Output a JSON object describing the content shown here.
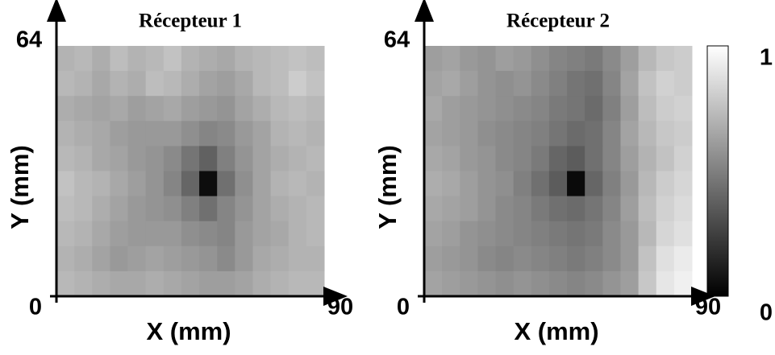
{
  "chart_data": [
    {
      "type": "heatmap",
      "title": "Récepteur 1",
      "xlabel": "X (mm)",
      "ylabel": "Y (mm)",
      "xlim": [
        0,
        90
      ],
      "ylim": [
        0,
        64
      ],
      "xticks": [
        0,
        90
      ],
      "yticks": [
        64
      ],
      "zlim": [
        0,
        1
      ],
      "z": [
        [
          0.7,
          0.72,
          0.68,
          0.74,
          0.7,
          0.72,
          0.76,
          0.7,
          0.68,
          0.66,
          0.7,
          0.72,
          0.74,
          0.76,
          0.74
        ],
        [
          0.72,
          0.7,
          0.66,
          0.7,
          0.68,
          0.74,
          0.72,
          0.68,
          0.64,
          0.62,
          0.66,
          0.72,
          0.74,
          0.8,
          0.76
        ],
        [
          0.68,
          0.66,
          0.64,
          0.66,
          0.62,
          0.64,
          0.66,
          0.62,
          0.6,
          0.58,
          0.64,
          0.68,
          0.72,
          0.74,
          0.72
        ],
        [
          0.7,
          0.68,
          0.66,
          0.62,
          0.6,
          0.6,
          0.6,
          0.56,
          0.52,
          0.54,
          0.6,
          0.64,
          0.7,
          0.72,
          0.7
        ],
        [
          0.72,
          0.7,
          0.66,
          0.64,
          0.6,
          0.58,
          0.54,
          0.46,
          0.38,
          0.5,
          0.58,
          0.64,
          0.68,
          0.7,
          0.72
        ],
        [
          0.76,
          0.72,
          0.7,
          0.66,
          0.62,
          0.58,
          0.52,
          0.4,
          0.05,
          0.44,
          0.56,
          0.64,
          0.7,
          0.72,
          0.7
        ],
        [
          0.74,
          0.72,
          0.68,
          0.64,
          0.6,
          0.58,
          0.56,
          0.5,
          0.44,
          0.52,
          0.58,
          0.64,
          0.68,
          0.7,
          0.72
        ],
        [
          0.72,
          0.7,
          0.66,
          0.62,
          0.6,
          0.6,
          0.6,
          0.56,
          0.54,
          0.52,
          0.6,
          0.64,
          0.66,
          0.7,
          0.72
        ],
        [
          0.7,
          0.68,
          0.64,
          0.6,
          0.62,
          0.64,
          0.62,
          0.6,
          0.58,
          0.54,
          0.6,
          0.66,
          0.68,
          0.7,
          0.7
        ],
        [
          0.72,
          0.7,
          0.68,
          0.66,
          0.66,
          0.68,
          0.66,
          0.64,
          0.62,
          0.62,
          0.64,
          0.68,
          0.7,
          0.72,
          0.72
        ]
      ]
    },
    {
      "type": "heatmap",
      "title": "Récepteur 2",
      "xlabel": "X (mm)",
      "ylabel": "Y (mm)",
      "xlim": [
        0,
        90
      ],
      "ylim": [
        0,
        64
      ],
      "xticks": [
        0,
        90
      ],
      "yticks": [
        64
      ],
      "zlim": [
        0,
        1
      ],
      "z": [
        [
          0.62,
          0.64,
          0.6,
          0.58,
          0.62,
          0.6,
          0.56,
          0.52,
          0.5,
          0.48,
          0.54,
          0.62,
          0.72,
          0.78,
          0.8
        ],
        [
          0.64,
          0.66,
          0.62,
          0.58,
          0.56,
          0.58,
          0.54,
          0.5,
          0.46,
          0.44,
          0.52,
          0.64,
          0.76,
          0.82,
          0.8
        ],
        [
          0.66,
          0.62,
          0.6,
          0.58,
          0.56,
          0.54,
          0.52,
          0.48,
          0.46,
          0.42,
          0.5,
          0.62,
          0.74,
          0.8,
          0.82
        ],
        [
          0.64,
          0.62,
          0.6,
          0.56,
          0.54,
          0.52,
          0.5,
          0.46,
          0.42,
          0.44,
          0.52,
          0.64,
          0.72,
          0.78,
          0.8
        ],
        [
          0.66,
          0.64,
          0.6,
          0.58,
          0.54,
          0.52,
          0.48,
          0.4,
          0.36,
          0.44,
          0.52,
          0.62,
          0.7,
          0.76,
          0.82
        ],
        [
          0.68,
          0.66,
          0.62,
          0.58,
          0.56,
          0.5,
          0.44,
          0.36,
          0.04,
          0.4,
          0.5,
          0.6,
          0.72,
          0.8,
          0.84
        ],
        [
          0.66,
          0.64,
          0.62,
          0.58,
          0.54,
          0.52,
          0.48,
          0.44,
          0.42,
          0.46,
          0.52,
          0.62,
          0.74,
          0.82,
          0.86
        ],
        [
          0.64,
          0.62,
          0.58,
          0.56,
          0.54,
          0.52,
          0.5,
          0.48,
          0.46,
          0.48,
          0.54,
          0.6,
          0.72,
          0.84,
          0.88
        ],
        [
          0.62,
          0.6,
          0.58,
          0.54,
          0.52,
          0.54,
          0.52,
          0.5,
          0.48,
          0.5,
          0.54,
          0.6,
          0.76,
          0.88,
          0.92
        ],
        [
          0.64,
          0.62,
          0.6,
          0.58,
          0.56,
          0.58,
          0.56,
          0.54,
          0.52,
          0.54,
          0.58,
          0.62,
          0.78,
          0.9,
          0.94
        ]
      ],
      "colorbar": {
        "lim": [
          0,
          1
        ],
        "ticks": [
          0,
          1
        ]
      }
    }
  ]
}
